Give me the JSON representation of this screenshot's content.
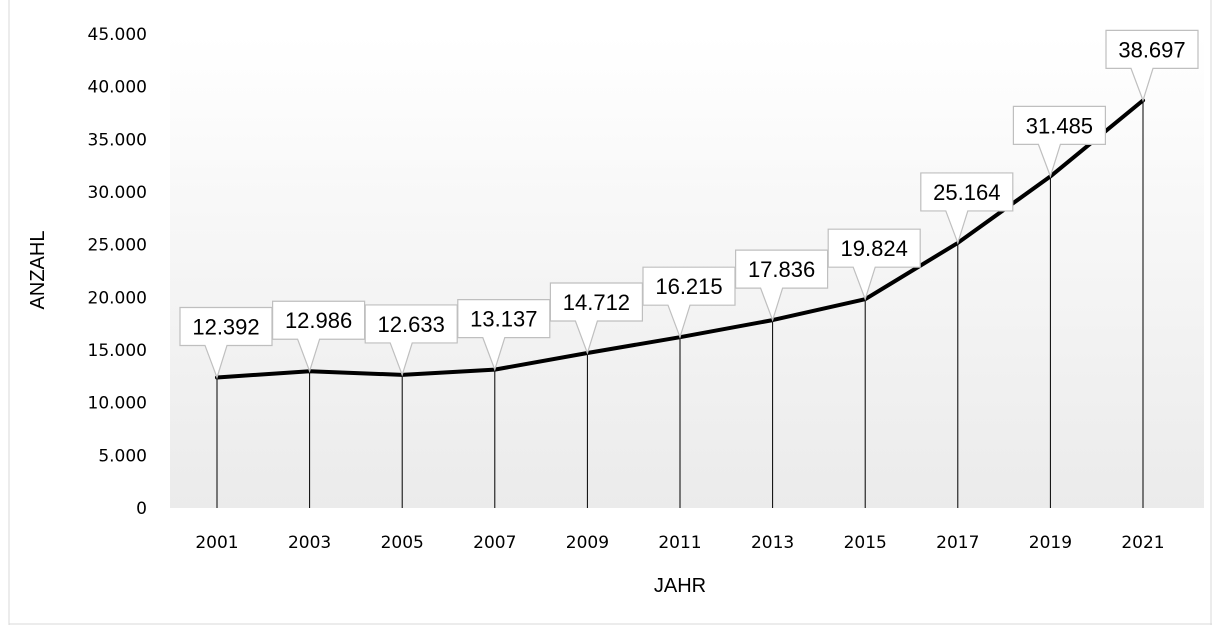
{
  "chart_data": {
    "type": "line",
    "title": "",
    "xlabel": "JAHR",
    "ylabel": "ANZAHL",
    "ylim": [
      0,
      45000
    ],
    "ytick_values": [
      0,
      5000,
      10000,
      15000,
      20000,
      25000,
      30000,
      35000,
      40000,
      45000
    ],
    "ytick_labels": [
      "0",
      "5.000",
      "10.000",
      "15.000",
      "20.000",
      "25.000",
      "30.000",
      "35.000",
      "40.000",
      "45.000"
    ],
    "categories": [
      "2001",
      "2003",
      "2005",
      "2007",
      "2009",
      "2011",
      "2013",
      "2015",
      "2017",
      "2019",
      "2021"
    ],
    "values": [
      12392,
      12986,
      12633,
      13137,
      14712,
      16215,
      17836,
      19824,
      25164,
      31485,
      38697
    ],
    "data_labels": [
      "12.392",
      "12.986",
      "12.633",
      "13.137",
      "14.712",
      "16.215",
      "17.836",
      "19.824",
      "25.164",
      "31.485",
      "38.697"
    ],
    "drop_lines": true,
    "grid": false,
    "legend": "none",
    "colors": {
      "line": "#000000",
      "callout_border": "#bfbfbf",
      "background_top": "#ffffff",
      "background_bottom": "#ebebeb"
    }
  }
}
